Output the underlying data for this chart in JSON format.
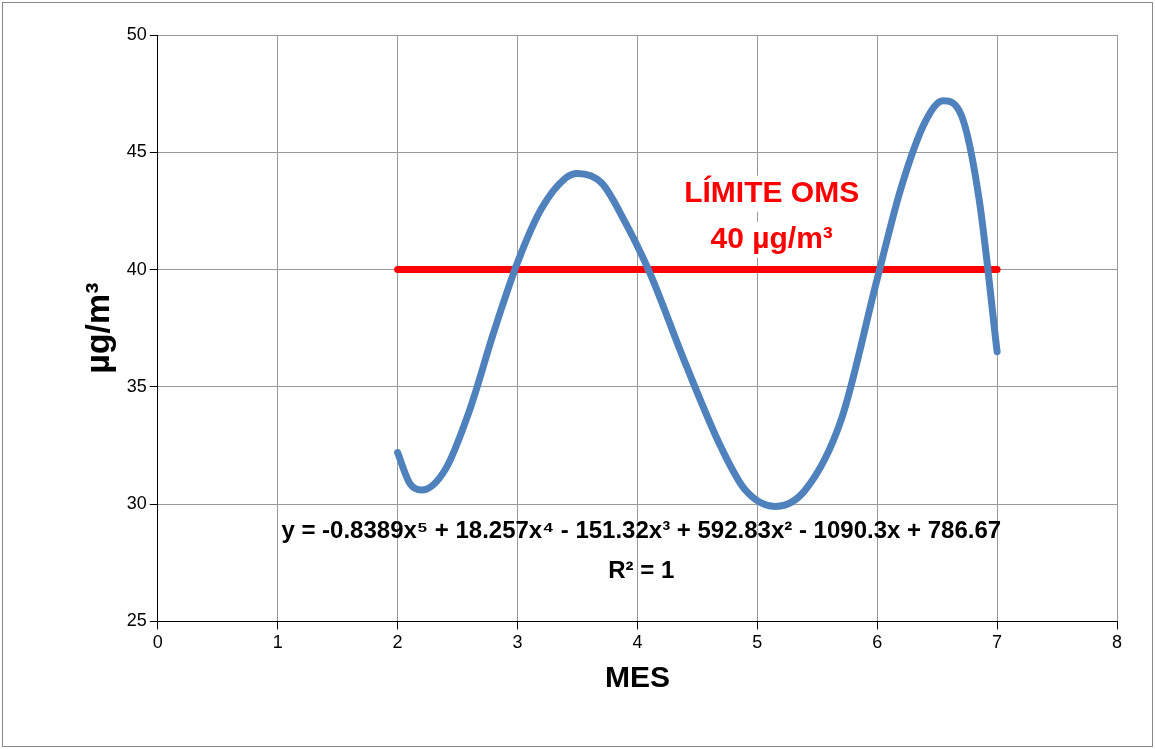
{
  "chart_data": {
    "type": "line",
    "xlabel": "MES",
    "ylabel": "µg/m³",
    "xlim": [
      0,
      8
    ],
    "xticks": [
      0,
      1,
      2,
      3,
      4,
      5,
      6,
      7,
      8
    ],
    "ylim": [
      25,
      50
    ],
    "yticks": [
      25,
      30,
      35,
      40,
      45,
      50
    ],
    "grid": true,
    "legend": false,
    "marker": "none",
    "line_style": "solid",
    "series": [
      {
        "color": "#4f81bd",
        "x": [
          2.0,
          2.1,
          2.2,
          2.4,
          2.6,
          2.8,
          3.0,
          3.2,
          3.4,
          3.5,
          3.7,
          3.9,
          4.1,
          4.4,
          4.7,
          4.9,
          5.15,
          5.4,
          5.7,
          6.0,
          6.2,
          6.4,
          6.55,
          6.7,
          6.85,
          7.0
        ],
        "values": [
          32.2,
          30.9,
          30.6,
          31.5,
          34.0,
          37.3,
          40.3,
          42.6,
          43.9,
          44.1,
          43.7,
          42.0,
          39.9,
          36.0,
          32.4,
          30.6,
          29.9,
          30.6,
          33.6,
          39.6,
          43.5,
          46.3,
          47.2,
          46.6,
          43.0,
          36.5
        ]
      },
      {
        "color": "#ff0000",
        "x": [
          2,
          7
        ],
        "values": [
          40,
          40
        ]
      }
    ],
    "annotations": [
      "LÍMITE OMS\n40 µg/m³",
      "y = -0.8389x⁵ + 18.257x⁴ - 151.32x³ + 592.83x² - 1090.3x + 786.67\nR² = 1"
    ]
  }
}
